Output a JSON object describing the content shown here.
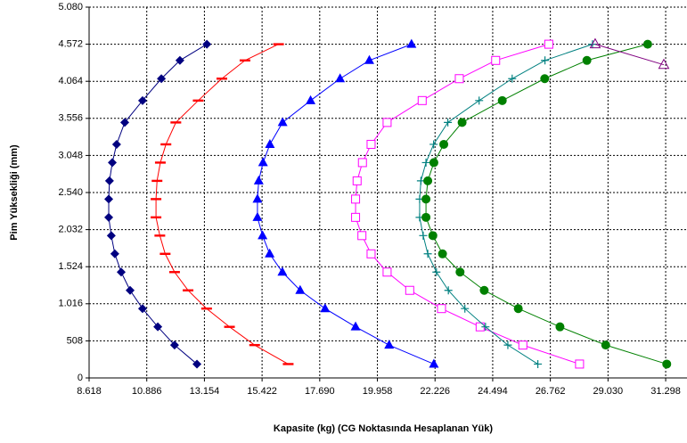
{
  "chart_data": {
    "type": "scatter",
    "x_label": "Kapasite (kg) (CG Noktasında Hesaplanan Yük)",
    "y_label": "Pim Yüksekliği (mm)",
    "xlim": [
      8618,
      32137
    ],
    "ylim": [
      0,
      5080
    ],
    "xticks": [
      {
        "value": 8618,
        "label": "8.618"
      },
      {
        "value": 10886,
        "label": "10.886"
      },
      {
        "value": 13154,
        "label": "13.154"
      },
      {
        "value": 15422,
        "label": "15.422"
      },
      {
        "value": 17690,
        "label": "17.690"
      },
      {
        "value": 19958,
        "label": "19.958"
      },
      {
        "value": 22226,
        "label": "22.226"
      },
      {
        "value": 24494,
        "label": "24.494"
      },
      {
        "value": 26762,
        "label": "26.762"
      },
      {
        "value": 29030,
        "label": "29.030"
      },
      {
        "value": 31298,
        "label": "31.298"
      }
    ],
    "yticks": [
      0,
      508,
      {
        "value": 1016,
        "label": "1.016"
      },
      {
        "value": 1524,
        "label": "1.524"
      },
      {
        "value": 2032,
        "label": "2.032"
      },
      {
        "value": 2540,
        "label": "2.540"
      },
      {
        "value": 3048,
        "label": "3.048"
      },
      {
        "value": 3556,
        "label": "3.556"
      },
      {
        "value": 4064,
        "label": "4.064"
      },
      {
        "value": 4572,
        "label": "4.572"
      },
      {
        "value": 5080,
        "label": "5.080"
      }
    ],
    "grid": true,
    "series": [
      {
        "color": "#000080",
        "marker": "diamond",
        "x": [
          12860,
          11980,
          11320,
          10720,
          10230,
          9880,
          9630,
          9490,
          9390,
          9390,
          9420,
          9530,
          9700,
          10020,
          10720,
          11460,
          12190,
          13250
        ],
        "y": [
          190,
          450,
          700,
          950,
          1200,
          1450,
          1700,
          1950,
          2200,
          2450,
          2700,
          2950,
          3200,
          3500,
          3800,
          4100,
          4350,
          4572
        ]
      },
      {
        "color": "#ff0000",
        "marker": "dash",
        "x": [
          16450,
          15130,
          14140,
          13240,
          12510,
          11980,
          11610,
          11400,
          11250,
          11250,
          11290,
          11420,
          11640,
          12030,
          12910,
          13840,
          14750,
          16070
        ],
        "y": [
          190,
          450,
          700,
          950,
          1200,
          1450,
          1700,
          1950,
          2200,
          2450,
          2700,
          2950,
          3200,
          3500,
          3800,
          4100,
          4350,
          4572
        ]
      },
      {
        "color": "#0000ff",
        "marker": "triangle",
        "x": [
          22180,
          20420,
          19100,
          17900,
          16920,
          16220,
          15720,
          15440,
          15240,
          15240,
          15290,
          15460,
          15730,
          16230,
          17330,
          18490,
          19640,
          21300
        ],
        "y": [
          190,
          450,
          700,
          950,
          1200,
          1450,
          1700,
          1950,
          2200,
          2450,
          2700,
          2950,
          3200,
          3500,
          3800,
          4100,
          4350,
          4572
        ]
      },
      {
        "color": "#ff00ff",
        "marker": "square-open",
        "x": [
          27910,
          25680,
          24000,
          22480,
          21230,
          20340,
          19710,
          19350,
          19100,
          19100,
          19160,
          19370,
          19710,
          20340,
          21720,
          23180,
          24610,
          26700
        ],
        "y": [
          190,
          450,
          700,
          950,
          1200,
          1450,
          1700,
          1950,
          2200,
          2450,
          2700,
          2950,
          3200,
          3500,
          3800,
          4100,
          4350,
          4572
        ]
      },
      {
        "color": "#008080",
        "marker": "plus",
        "x": [
          26270,
          25090,
          24210,
          23400,
          22750,
          22280,
          21940,
          21760,
          21620,
          21620,
          21670,
          21870,
          22170,
          22730,
          23960,
          25260,
          26550,
          28420
        ],
        "y": [
          190,
          450,
          700,
          950,
          1200,
          1450,
          1700,
          1950,
          2200,
          2450,
          2700,
          2950,
          3200,
          3500,
          3800,
          4100,
          4350,
          4572
        ]
      },
      {
        "color": "#008000",
        "marker": "circle",
        "x": [
          31340,
          28940,
          27140,
          25500,
          24160,
          23210,
          22520,
          22140,
          21870,
          21870,
          21940,
          22180,
          22570,
          23290,
          24870,
          26540,
          28200,
          30590
        ],
        "y": [
          190,
          450,
          700,
          950,
          1200,
          1450,
          1700,
          1950,
          2200,
          2450,
          2700,
          2950,
          3200,
          3500,
          3800,
          4100,
          4350,
          4572
        ]
      },
      {
        "color": "#800080",
        "marker": "triangle-open",
        "x": [
          28526,
          31225
        ],
        "y": [
          4572,
          4290
        ]
      }
    ]
  }
}
